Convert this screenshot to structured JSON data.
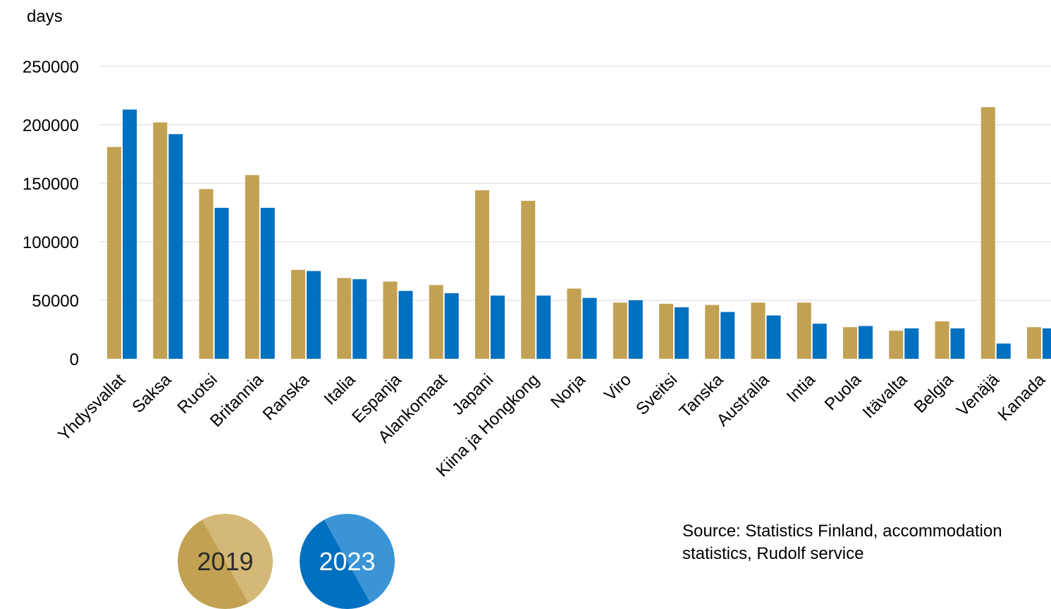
{
  "colors": {
    "series_2019": "#C2A153",
    "series_2023": "#0070C0",
    "badge_2019_light": "#D4B877",
    "badge_2023_light": "#3A94D6",
    "gridline": "#D9D9D9"
  },
  "chart_data": {
    "type": "bar",
    "ylabel": "days",
    "ylim": [
      0,
      250000
    ],
    "yticks": [
      0,
      50000,
      100000,
      150000,
      200000,
      250000
    ],
    "ytick_labels": [
      "0",
      "50000",
      "100000",
      "150000",
      "200000",
      "250000"
    ],
    "grid": true,
    "categories": [
      "Yhdysvallat",
      "Saksa",
      "Ruotsi",
      "Britannia",
      "Ranska",
      "Italia",
      "Espanja",
      "Alankomaat",
      "Japani",
      "Kiina ja Hongkong",
      "Norja",
      "Viro",
      "Sveitsi",
      "Tanska",
      "Australia",
      "Intia",
      "Puola",
      "Itävalta",
      "Belgia",
      "Venäjä",
      "Kanada"
    ],
    "series": [
      {
        "name": "2019",
        "values": [
          181000,
          202000,
          145000,
          157000,
          76000,
          69000,
          66000,
          63000,
          144000,
          135000,
          60000,
          48000,
          47000,
          46000,
          48000,
          48000,
          27000,
          24000,
          32000,
          215000,
          27000
        ]
      },
      {
        "name": "2023",
        "values": [
          213000,
          192000,
          129000,
          129000,
          75000,
          68000,
          58000,
          56000,
          54000,
          54000,
          52000,
          50000,
          44000,
          40000,
          37000,
          30000,
          28000,
          26000,
          26000,
          13000,
          26000
        ]
      }
    ],
    "legend_placement": "bottom-left"
  },
  "legend": {
    "label_2019": "2019",
    "label_2023": "2023"
  },
  "source": {
    "line1": "Source: Statistics Finland, accommodation",
    "line2": "statistics, Rudolf service"
  }
}
